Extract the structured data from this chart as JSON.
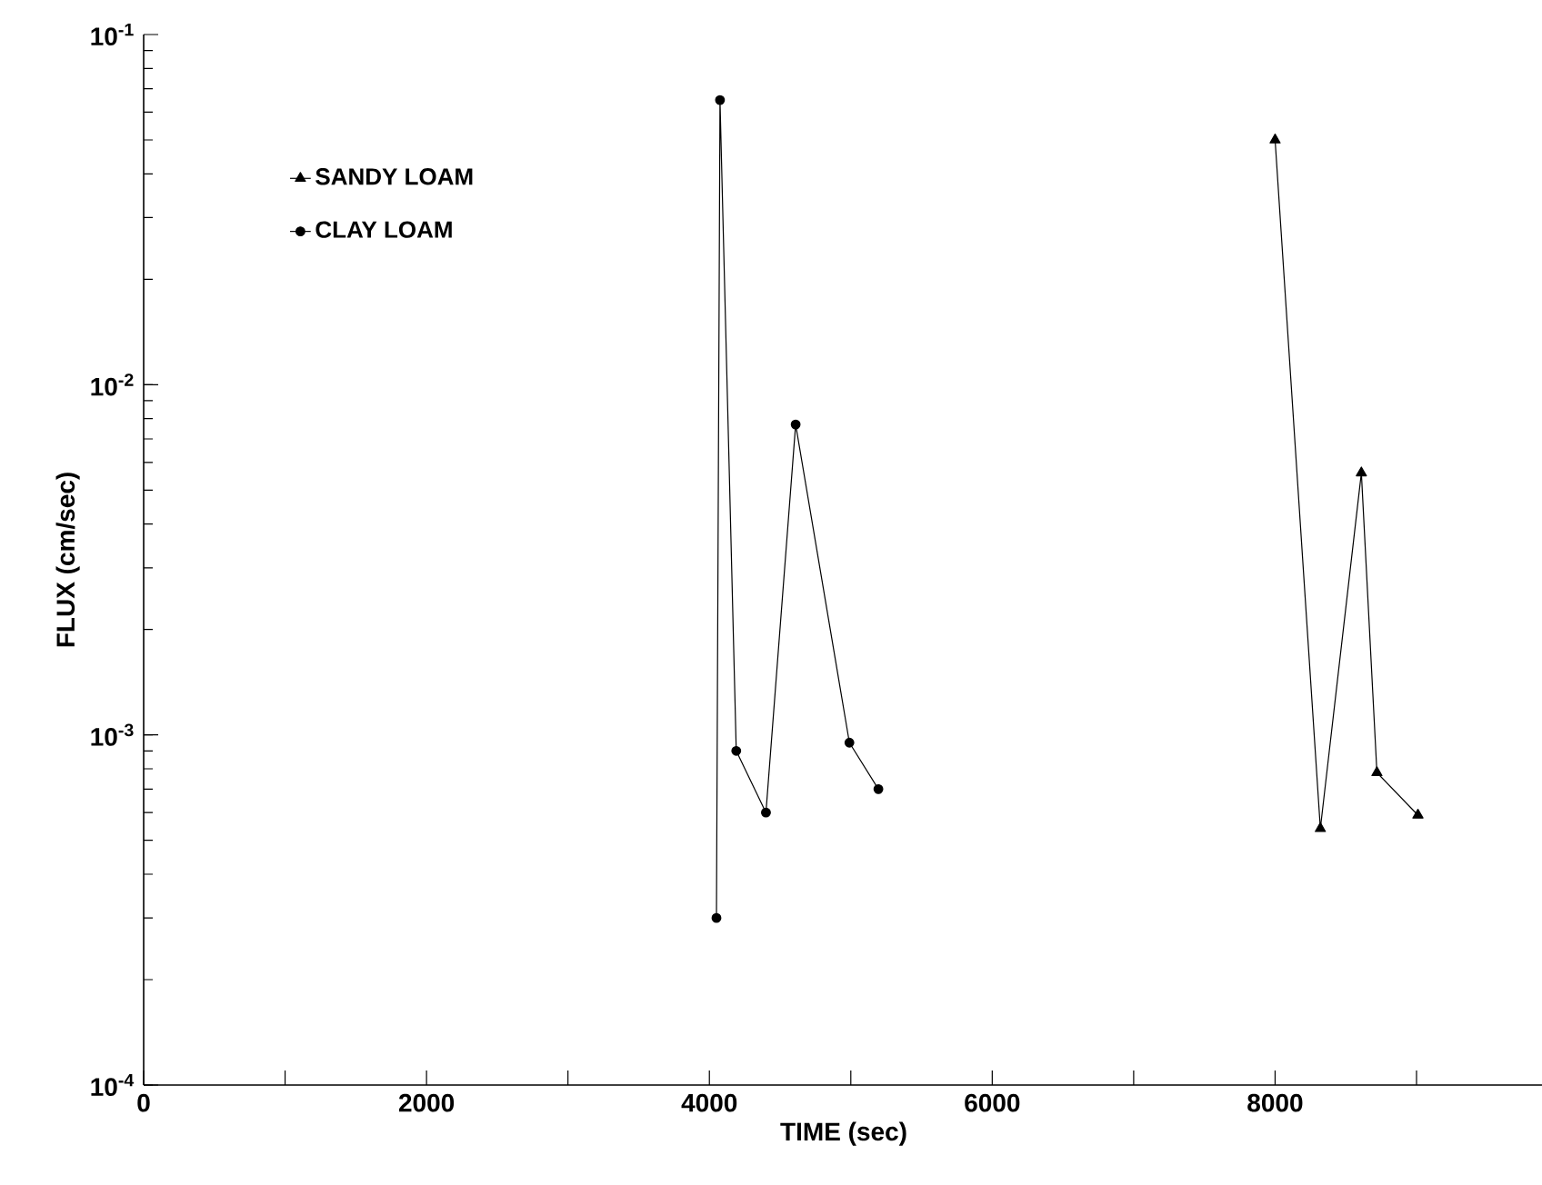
{
  "chart_data": {
    "type": "line",
    "xlabel": "TIME (sec)",
    "ylabel": "FLUX (cm/sec)",
    "log": "y",
    "legend": "top left",
    "grid": false,
    "xlim": [
      0,
      9900
    ],
    "ylim": [
      0.0001,
      0.1
    ],
    "xticks": [
      0,
      {
        "value": 1000,
        "label": null
      },
      2000,
      {
        "value": 3000,
        "label": null
      },
      4000,
      {
        "value": 5000,
        "label": null
      },
      6000,
      {
        "value": 7000,
        "label": null
      },
      8000,
      {
        "value": 9000,
        "label": null
      }
    ],
    "yticks": [
      {
        "value": 0.0001,
        "label": "10$^{-4}$"
      },
      {
        "value": 0.001,
        "label": "10$^{-3}$"
      },
      {
        "value": 0.01,
        "label": "10$^{-2}$"
      },
      {
        "value": 0.1,
        "label": "10$^{-1}$"
      }
    ],
    "series": [
      {
        "name": "SANDY LOAM",
        "color": "#000000",
        "marker": "triangle",
        "x": [
          8000,
          8320,
          8610,
          8720,
          9010
        ],
        "values": [
          0.05,
          0.00054,
          0.0056,
          0.00078,
          0.00059
        ]
      },
      {
        "name": "CLAY LOAM",
        "color": "#000000",
        "marker": "circle",
        "x": [
          4050,
          4075,
          4190,
          4400,
          4610,
          4990,
          5195
        ],
        "values": [
          0.0003,
          0.065,
          0.0009,
          0.0006,
          0.0077,
          0.00095,
          0.0007
        ]
      }
    ]
  }
}
